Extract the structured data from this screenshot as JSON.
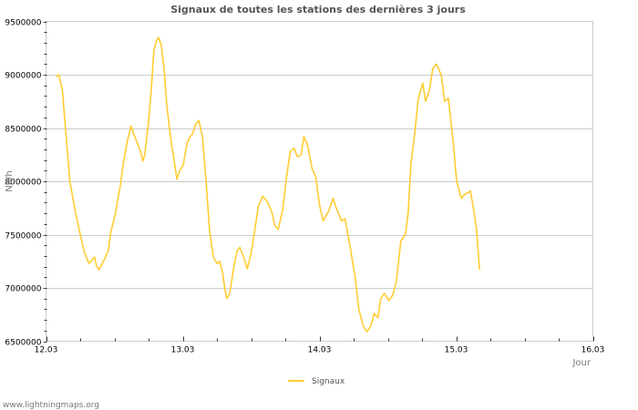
{
  "chart_data": {
    "type": "line",
    "title": "Signaux de toutes les stations des dernières 3 jours",
    "xlabel": "Jour",
    "ylabel": "Nb/h",
    "ylim": [
      6500000,
      9500000
    ],
    "xlim": [
      12.0,
      16.0
    ],
    "x_tick_labels": [
      "12.03",
      "13.03",
      "14.03",
      "15.03",
      "16.03"
    ],
    "y_tick_labels": [
      "6500000",
      "7000000",
      "7500000",
      "8000000",
      "8500000",
      "9000000",
      "9500000"
    ],
    "y_ticks": [
      6500000,
      7000000,
      7500000,
      8000000,
      8500000,
      9000000,
      9500000
    ],
    "grid": true,
    "legend_position": "bottom",
    "series": [
      {
        "name": "Signaux",
        "color": "#ffcc33",
        "x": [
          12.074,
          12.094,
          12.12,
          12.147,
          12.174,
          12.214,
          12.254,
          12.281,
          12.314,
          12.328,
          12.355,
          12.368,
          12.388,
          12.428,
          12.455,
          12.475,
          12.508,
          12.542,
          12.569,
          12.595,
          12.622,
          12.649,
          12.689,
          12.709,
          12.722,
          12.749,
          12.769,
          12.789,
          12.809,
          12.823,
          12.843,
          12.863,
          12.883,
          12.91,
          12.93,
          12.957,
          12.977,
          13.003,
          13.03,
          13.05,
          13.07,
          13.097,
          13.117,
          13.144,
          13.171,
          13.197,
          13.224,
          13.251,
          13.271,
          13.291,
          13.311,
          13.324,
          13.344,
          13.371,
          13.398,
          13.418,
          13.445,
          13.472,
          13.498,
          13.525,
          13.552,
          13.585,
          13.619,
          13.652,
          13.672,
          13.699,
          13.732,
          13.759,
          13.786,
          13.813,
          13.839,
          13.866,
          13.886,
          13.913,
          13.946,
          13.973,
          14.0,
          14.027,
          14.067,
          14.1,
          14.12,
          14.161,
          14.187,
          14.221,
          14.261,
          14.288,
          14.321,
          14.348,
          14.375,
          14.401,
          14.428,
          14.448,
          14.475,
          14.508,
          14.535,
          14.562,
          14.595,
          14.629,
          14.649,
          14.669,
          14.696,
          14.722,
          14.756,
          14.776,
          14.803,
          14.829,
          14.856,
          14.89,
          14.916,
          14.943,
          14.977,
          15.003,
          15.037,
          15.064,
          15.084,
          15.104,
          15.13,
          15.151,
          15.171
        ],
        "values": [
          8980000,
          9000000,
          8850000,
          8420000,
          8000000,
          7720000,
          7480000,
          7330000,
          7230000,
          7250000,
          7290000,
          7210000,
          7170000,
          7270000,
          7350000,
          7530000,
          7700000,
          7950000,
          8200000,
          8380000,
          8520000,
          8420000,
          8290000,
          8190000,
          8250000,
          8550000,
          8850000,
          9230000,
          9320000,
          9350000,
          9280000,
          9060000,
          8720000,
          8420000,
          8250000,
          8020000,
          8100000,
          8150000,
          8350000,
          8410000,
          8440000,
          8540000,
          8570000,
          8420000,
          8000000,
          7530000,
          7290000,
          7230000,
          7250000,
          7140000,
          6970000,
          6900000,
          6950000,
          7180000,
          7350000,
          7380000,
          7290000,
          7180000,
          7310000,
          7530000,
          7760000,
          7860000,
          7810000,
          7710000,
          7590000,
          7550000,
          7740000,
          8040000,
          8280000,
          8310000,
          8230000,
          8250000,
          8420000,
          8340000,
          8120000,
          8040000,
          7780000,
          7630000,
          7720000,
          7840000,
          7760000,
          7630000,
          7650000,
          7410000,
          7100000,
          6800000,
          6640000,
          6590000,
          6640000,
          6760000,
          6720000,
          6900000,
          6950000,
          6880000,
          6930000,
          7060000,
          7440000,
          7500000,
          7700000,
          8170000,
          8440000,
          8770000,
          8920000,
          8750000,
          8850000,
          9060000,
          9100000,
          9000000,
          8750000,
          8780000,
          8380000,
          8000000,
          7840000,
          7880000,
          7890000,
          7910000,
          7720000,
          7530000,
          7170000
        ]
      }
    ]
  },
  "footer": {
    "credit": "www.lightningmaps.org"
  }
}
